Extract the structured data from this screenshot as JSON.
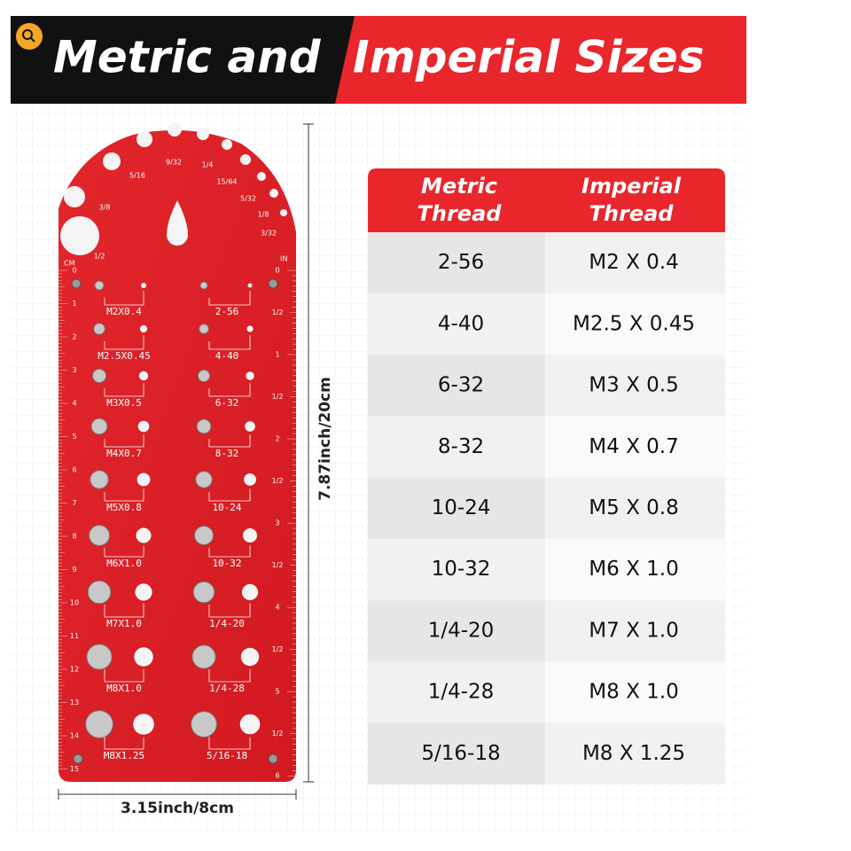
{
  "header": {
    "title_left": "Metric and",
    "title_right": "Imperial Sizes"
  },
  "gauge": {
    "notch_labels": [
      "3/8",
      "5/16",
      "9/32",
      "1/4",
      "15/64",
      "5/32",
      "1/8",
      "3/32",
      "1/2"
    ],
    "cm_label": "CM",
    "in_label": "IN",
    "cm_scale": [
      "0",
      "1",
      "2",
      "3",
      "4",
      "5",
      "6",
      "7",
      "8",
      "9",
      "10",
      "11",
      "12",
      "13",
      "14",
      "15"
    ],
    "in_scale": [
      "0",
      "1/2",
      "1",
      "1/2",
      "2",
      "1/2",
      "3",
      "1/2",
      "4",
      "1/2",
      "5",
      "1/2",
      "6"
    ],
    "left_labels": [
      "M2X0.4",
      "M2.5X0.45",
      "M3X0.5",
      "M4X0.7",
      "M5X0.8",
      "M6X1.0",
      "M7X1.0",
      "M8X1.0",
      "M8X1.25"
    ],
    "right_labels": [
      "2-56",
      "4-40",
      "6-32",
      "8-32",
      "10-24",
      "10-32",
      "1/4-20",
      "1/4-28",
      "5/16-18"
    ]
  },
  "dimensions": {
    "height": "7.87inch/20cm",
    "width": "3.15inch/8cm"
  },
  "table": {
    "headers": [
      [
        "Metric",
        "Thread"
      ],
      [
        "Imperial",
        "Thread"
      ]
    ],
    "rows": [
      [
        "2-56",
        "M2 X 0.4"
      ],
      [
        "4-40",
        "M2.5 X 0.45"
      ],
      [
        "6-32",
        "M3 X 0.5"
      ],
      [
        "8-32",
        "M4 X 0.7"
      ],
      [
        "10-24",
        "M5 X 0.8"
      ],
      [
        "10-32",
        "M6 X 1.0"
      ],
      [
        "1/4-20",
        "M7 X 1.0"
      ],
      [
        "1/4-28",
        "M8 X 1.0"
      ],
      [
        "5/16-18",
        "M8 X 1.25"
      ]
    ]
  }
}
